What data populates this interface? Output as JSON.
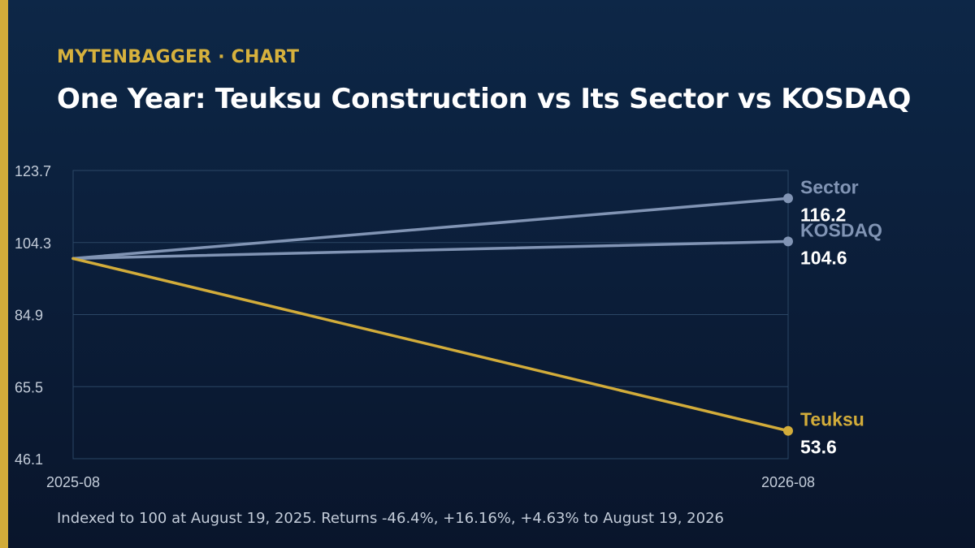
{
  "brand": {
    "label": "MYTENBAGGER · CHART",
    "accent_color": "#d2ac3a"
  },
  "chart_data": {
    "type": "line",
    "title": "One Year: Teuksu Construction vs Its Sector vs KOSDAQ",
    "x": [
      "2025-08",
      "2026-08"
    ],
    "ylim": [
      46.1,
      123.7
    ],
    "yticks": [
      "123.7",
      "104.3",
      "84.9",
      "65.5",
      "46.1"
    ],
    "grid": true,
    "series": [
      {
        "name": "Sector",
        "values": [
          100,
          116.2
        ],
        "end_label": "116.2",
        "color": "#8194b4"
      },
      {
        "name": "KOSDAQ",
        "values": [
          100,
          104.6
        ],
        "end_label": "104.6",
        "color": "#8194b4"
      },
      {
        "name": "Teuksu",
        "values": [
          100,
          53.6
        ],
        "end_label": "53.6",
        "color": "#d2ac3a"
      }
    ],
    "note": "Indexed to 100 at August 19, 2025. Returns -46.4%, +16.16%, +4.63% to August 19, 2026"
  }
}
